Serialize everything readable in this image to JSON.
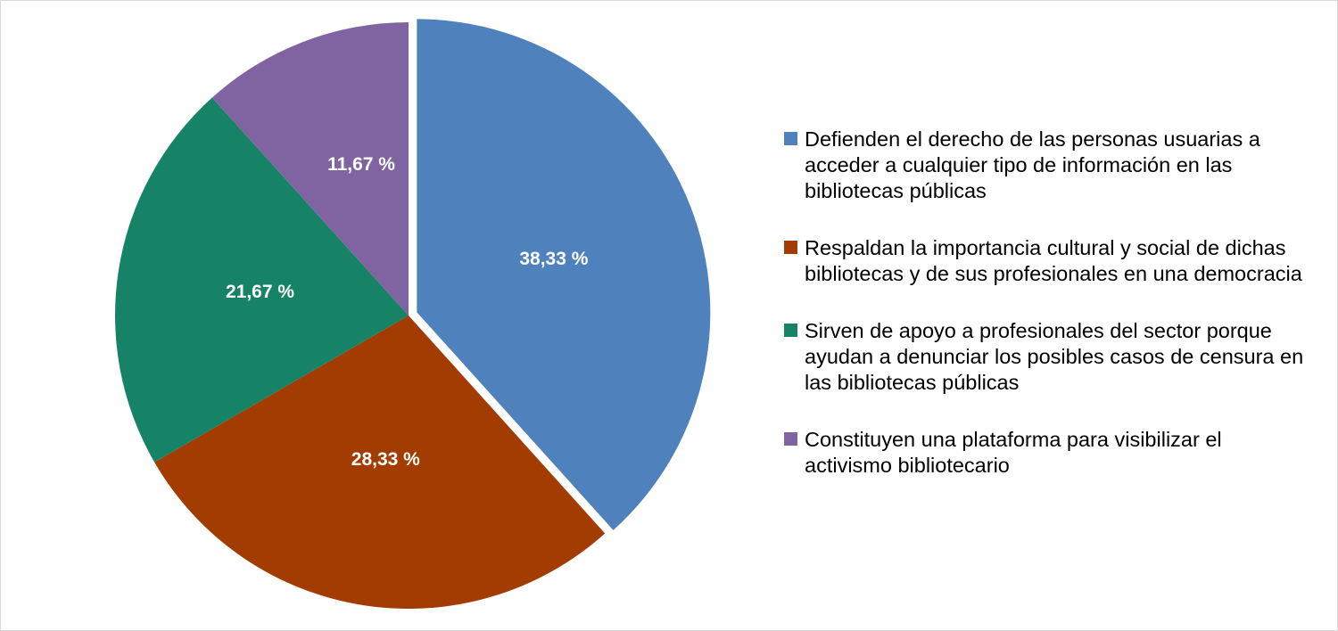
{
  "chart_data": {
    "type": "pie",
    "title": "",
    "slices": [
      {
        "label": "Defienden el derecho de las personas usuarias a acceder a cualquier tipo de información en las bibliotecas públicas",
        "value": 38.33,
        "value_label": "38,33 %",
        "color": "#4f81bd",
        "exploded": true
      },
      {
        "label": "Respaldan la importancia cultural y social de dichas bibliotecas y de sus profesionales en una democracia",
        "value": 28.33,
        "value_label": "28,33 %",
        "color": "#a33c00",
        "exploded": false
      },
      {
        "label": "Sirven de apoyo a profesionales del sector porque ayudan a denunciar los posibles casos de censura en las bibliotecas públicas",
        "value": 21.67,
        "value_label": "21,67 %",
        "color": "#178366",
        "exploded": false
      },
      {
        "label": "Constituyen una plataforma para visibilizar el activismo bibliotecario",
        "value": 11.67,
        "value_label": "11,67 %",
        "color": "#8064a2",
        "exploded": false
      }
    ],
    "legend_position": "right"
  }
}
